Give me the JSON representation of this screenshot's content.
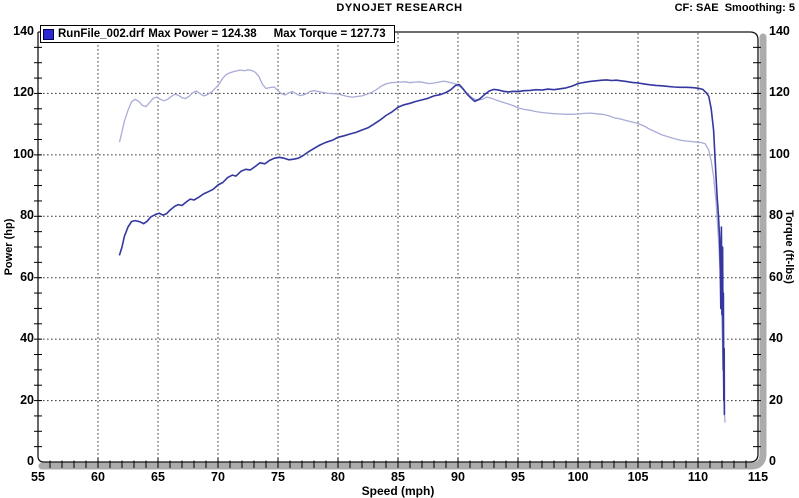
{
  "header": {
    "title": "DYNOJET RESEARCH",
    "settings": "CF: SAE  Smoothing: 5"
  },
  "legend": {
    "file": "RunFile_002.drf",
    "max_power": "Max Power = 124.38",
    "max_torque": "Max Torque = 127.73",
    "swatch_color": "#2a2ad0"
  },
  "axes": {
    "left_title": "Power (hp)",
    "right_title": "Torque (ft-lbs)",
    "x_title": "Speed (mph)"
  },
  "chart_data": {
    "type": "line",
    "title": "DYNOJET RESEARCH",
    "correction_factor": "SAE",
    "smoothing": 5,
    "run_file": "RunFile_002.drf",
    "max_power_hp": 124.38,
    "max_torque_ftlbs": 127.73,
    "xlabel": "Speed (mph)",
    "ylabel_left": "Power (hp)",
    "ylabel_right": "Torque (ft-lbs)",
    "xlim": [
      55,
      115
    ],
    "ylim": [
      0,
      140
    ],
    "x_major_ticks": [
      55,
      60,
      65,
      70,
      75,
      80,
      85,
      90,
      95,
      100,
      105,
      110,
      115
    ],
    "y_major_ticks": [
      0,
      20,
      40,
      60,
      80,
      100,
      120,
      140
    ],
    "x_minor_step": 1,
    "y_minor_step": 5,
    "grid": "dashed-major",
    "grid_color": "#3c3c3c",
    "frame_color": "#161616",
    "bar_color": "#acacac",
    "legend_position": "top-left",
    "series": [
      {
        "name": "Torque",
        "unit": "ft-lbs",
        "color": "#a9acd9",
        "points": [
          [
            61.8,
            104.3
          ],
          [
            62.0,
            107.5
          ],
          [
            62.2,
            111.0
          ],
          [
            62.5,
            114.5
          ],
          [
            62.8,
            117.3
          ],
          [
            63.1,
            118.1
          ],
          [
            63.4,
            117.4
          ],
          [
            63.7,
            116.1
          ],
          [
            64.0,
            115.7
          ],
          [
            64.3,
            117.0
          ],
          [
            64.6,
            118.4
          ],
          [
            64.9,
            118.8
          ],
          [
            65.2,
            118.1
          ],
          [
            65.5,
            117.6
          ],
          [
            65.8,
            118.1
          ],
          [
            66.1,
            119.0
          ],
          [
            66.4,
            119.7
          ],
          [
            66.7,
            119.4
          ],
          [
            67.0,
            118.6
          ],
          [
            67.3,
            118.3
          ],
          [
            67.6,
            119.1
          ],
          [
            67.9,
            120.2
          ],
          [
            68.2,
            120.8
          ],
          [
            68.5,
            119.9
          ],
          [
            68.8,
            119.2
          ],
          [
            69.1,
            119.6
          ],
          [
            69.5,
            120.6
          ],
          [
            69.8,
            121.8
          ],
          [
            70.1,
            123.1
          ],
          [
            70.4,
            125.0
          ],
          [
            70.7,
            126.2
          ],
          [
            71.0,
            126.7
          ],
          [
            71.3,
            127.1
          ],
          [
            71.6,
            127.4
          ],
          [
            71.9,
            127.6
          ],
          [
            72.2,
            127.4
          ],
          [
            72.5,
            127.7
          ],
          [
            72.8,
            127.5
          ],
          [
            73.1,
            126.9
          ],
          [
            73.4,
            125.6
          ],
          [
            73.7,
            123.0
          ],
          [
            74.0,
            121.6
          ],
          [
            74.3,
            121.9
          ],
          [
            74.7,
            122.1
          ],
          [
            75.0,
            120.9
          ],
          [
            75.3,
            119.9
          ],
          [
            75.6,
            119.5
          ],
          [
            75.9,
            120.2
          ],
          [
            76.2,
            120.6
          ],
          [
            76.5,
            119.9
          ],
          [
            76.8,
            119.3
          ],
          [
            77.1,
            119.5
          ],
          [
            77.4,
            120.0
          ],
          [
            77.7,
            120.7
          ],
          [
            78.0,
            120.9
          ],
          [
            78.4,
            120.6
          ],
          [
            78.8,
            120.3
          ],
          [
            79.2,
            120.0
          ],
          [
            79.6,
            119.9
          ],
          [
            80.0,
            119.8
          ],
          [
            80.4,
            119.4
          ],
          [
            80.8,
            119.0
          ],
          [
            81.2,
            118.8
          ],
          [
            81.6,
            119.0
          ],
          [
            82.0,
            119.2
          ],
          [
            82.4,
            119.7
          ],
          [
            82.8,
            120.3
          ],
          [
            83.2,
            121.2
          ],
          [
            83.6,
            122.4
          ],
          [
            84.0,
            123.1
          ],
          [
            84.4,
            123.5
          ],
          [
            84.8,
            123.6
          ],
          [
            85.2,
            123.7
          ],
          [
            85.6,
            123.8
          ],
          [
            86.0,
            123.5
          ],
          [
            86.4,
            123.7
          ],
          [
            86.8,
            123.8
          ],
          [
            87.2,
            123.5
          ],
          [
            87.6,
            123.2
          ],
          [
            88.0,
            123.4
          ],
          [
            88.4,
            123.7
          ],
          [
            88.8,
            124.0
          ],
          [
            89.2,
            123.7
          ],
          [
            89.6,
            123.3
          ],
          [
            90.0,
            122.8
          ],
          [
            90.4,
            121.4
          ],
          [
            90.8,
            119.8
          ],
          [
            91.2,
            118.5
          ],
          [
            91.6,
            117.8
          ],
          [
            92.0,
            118.1
          ],
          [
            92.4,
            118.8
          ],
          [
            92.8,
            118.4
          ],
          [
            93.2,
            117.8
          ],
          [
            93.6,
            117.3
          ],
          [
            94.0,
            116.8
          ],
          [
            94.5,
            116.2
          ],
          [
            95.0,
            115.3
          ],
          [
            95.5,
            114.8
          ],
          [
            96.0,
            114.5
          ],
          [
            96.5,
            114.1
          ],
          [
            97.0,
            113.8
          ],
          [
            97.5,
            113.6
          ],
          [
            98.0,
            113.4
          ],
          [
            98.5,
            113.3
          ],
          [
            99.0,
            113.2
          ],
          [
            99.5,
            113.2
          ],
          [
            100.0,
            113.3
          ],
          [
            100.5,
            113.5
          ],
          [
            101.0,
            113.6
          ],
          [
            101.5,
            113.4
          ],
          [
            102.0,
            113.2
          ],
          [
            102.5,
            112.8
          ],
          [
            103.0,
            112.1
          ],
          [
            103.5,
            111.7
          ],
          [
            104.0,
            111.2
          ],
          [
            104.5,
            110.7
          ],
          [
            105.0,
            110.2
          ],
          [
            105.5,
            109.4
          ],
          [
            106.0,
            108.3
          ],
          [
            106.5,
            107.4
          ],
          [
            107.0,
            106.5
          ],
          [
            107.5,
            105.9
          ],
          [
            108.0,
            105.3
          ],
          [
            108.5,
            104.8
          ],
          [
            109.0,
            104.5
          ],
          [
            109.5,
            104.3
          ],
          [
            110.0,
            104.1
          ],
          [
            110.3,
            104.0
          ],
          [
            110.6,
            103.6
          ],
          [
            110.9,
            101.5
          ],
          [
            111.1,
            98.0
          ],
          [
            111.3,
            93.0
          ],
          [
            111.5,
            85.0
          ],
          [
            111.7,
            73.0
          ],
          [
            111.9,
            58.0
          ],
          [
            112.0,
            45.0
          ],
          [
            112.1,
            30.0
          ],
          [
            112.15,
            21.0
          ],
          [
            112.2,
            16.0
          ],
          [
            112.25,
            13.0
          ]
        ]
      },
      {
        "name": "Power",
        "unit": "hp",
        "color": "#34379f",
        "points": [
          [
            61.8,
            67.5
          ],
          [
            62.0,
            70.0
          ],
          [
            62.2,
            73.5
          ],
          [
            62.5,
            76.5
          ],
          [
            62.8,
            78.3
          ],
          [
            63.1,
            78.6
          ],
          [
            63.5,
            78.2
          ],
          [
            63.8,
            77.6
          ],
          [
            64.1,
            78.4
          ],
          [
            64.4,
            79.8
          ],
          [
            64.8,
            80.6
          ],
          [
            65.1,
            81.0
          ],
          [
            65.4,
            80.4
          ],
          [
            65.7,
            80.8
          ],
          [
            66.0,
            82.0
          ],
          [
            66.4,
            83.3
          ],
          [
            66.7,
            83.8
          ],
          [
            67.0,
            83.5
          ],
          [
            67.4,
            84.8
          ],
          [
            67.7,
            85.6
          ],
          [
            68.0,
            85.3
          ],
          [
            68.4,
            86.2
          ],
          [
            68.8,
            87.3
          ],
          [
            69.2,
            88.0
          ],
          [
            69.6,
            88.8
          ],
          [
            70.0,
            90.2
          ],
          [
            70.4,
            91.0
          ],
          [
            70.8,
            92.6
          ],
          [
            71.2,
            93.4
          ],
          [
            71.5,
            93.1
          ],
          [
            71.9,
            94.6
          ],
          [
            72.3,
            95.3
          ],
          [
            72.7,
            95.1
          ],
          [
            73.1,
            96.2
          ],
          [
            73.5,
            97.4
          ],
          [
            73.9,
            97.1
          ],
          [
            74.3,
            98.2
          ],
          [
            74.7,
            98.9
          ],
          [
            75.1,
            99.2
          ],
          [
            75.5,
            98.9
          ],
          [
            75.9,
            98.4
          ],
          [
            76.3,
            98.6
          ],
          [
            76.7,
            98.9
          ],
          [
            77.1,
            99.8
          ],
          [
            77.5,
            100.9
          ],
          [
            78.0,
            102.1
          ],
          [
            78.5,
            103.2
          ],
          [
            79.0,
            104.1
          ],
          [
            79.5,
            104.7
          ],
          [
            80.0,
            105.7
          ],
          [
            80.5,
            106.2
          ],
          [
            81.0,
            106.8
          ],
          [
            81.5,
            107.3
          ],
          [
            82.0,
            108.1
          ],
          [
            82.5,
            108.8
          ],
          [
            83.0,
            110.0
          ],
          [
            83.5,
            111.3
          ],
          [
            84.0,
            112.8
          ],
          [
            84.5,
            114.0
          ],
          [
            85.0,
            115.5
          ],
          [
            85.5,
            116.3
          ],
          [
            86.0,
            116.8
          ],
          [
            86.5,
            117.4
          ],
          [
            87.0,
            117.9
          ],
          [
            87.5,
            118.4
          ],
          [
            88.0,
            119.2
          ],
          [
            88.5,
            119.6
          ],
          [
            89.0,
            120.3
          ],
          [
            89.4,
            121.2
          ],
          [
            89.8,
            122.6
          ],
          [
            90.1,
            122.9
          ],
          [
            90.4,
            121.6
          ],
          [
            90.8,
            119.6
          ],
          [
            91.1,
            118.4
          ],
          [
            91.4,
            117.4
          ],
          [
            91.8,
            118.2
          ],
          [
            92.2,
            119.6
          ],
          [
            92.6,
            120.8
          ],
          [
            93.0,
            121.3
          ],
          [
            93.4,
            121.1
          ],
          [
            93.8,
            120.7
          ],
          [
            94.2,
            120.5
          ],
          [
            94.6,
            120.7
          ],
          [
            95.0,
            120.6
          ],
          [
            95.5,
            120.9
          ],
          [
            96.0,
            121.0
          ],
          [
            96.5,
            121.2
          ],
          [
            97.0,
            121.1
          ],
          [
            97.5,
            121.4
          ],
          [
            98.0,
            121.2
          ],
          [
            98.5,
            121.5
          ],
          [
            99.0,
            121.8
          ],
          [
            99.5,
            122.4
          ],
          [
            100.0,
            123.2
          ],
          [
            100.5,
            123.6
          ],
          [
            101.0,
            123.9
          ],
          [
            101.5,
            124.1
          ],
          [
            102.0,
            124.3
          ],
          [
            102.4,
            124.4
          ],
          [
            102.8,
            124.2
          ],
          [
            103.2,
            124.3
          ],
          [
            103.6,
            124.1
          ],
          [
            104.0,
            123.9
          ],
          [
            104.5,
            123.6
          ],
          [
            105.0,
            123.4
          ],
          [
            105.5,
            123.1
          ],
          [
            106.0,
            122.8
          ],
          [
            106.5,
            122.6
          ],
          [
            107.0,
            122.5
          ],
          [
            107.5,
            122.3
          ],
          [
            108.0,
            122.1
          ],
          [
            108.5,
            122.0
          ],
          [
            109.0,
            122.0
          ],
          [
            109.5,
            121.9
          ],
          [
            110.0,
            121.7
          ],
          [
            110.4,
            121.3
          ],
          [
            110.7,
            120.2
          ],
          [
            110.9,
            119.0
          ],
          [
            111.1,
            115.0
          ],
          [
            111.3,
            108.0
          ],
          [
            111.4,
            100.5
          ],
          [
            111.5,
            93.0
          ],
          [
            111.6,
            86.0
          ],
          [
            111.7,
            80.5
          ],
          [
            111.8,
            73.0
          ],
          [
            111.85,
            64.0
          ],
          [
            111.9,
            50.0
          ],
          [
            111.95,
            76.5
          ],
          [
            112.0,
            48.0
          ],
          [
            112.05,
            70.0
          ],
          [
            112.1,
            30.0
          ],
          [
            112.12,
            55.0
          ],
          [
            112.15,
            20.0
          ],
          [
            112.18,
            37.0
          ],
          [
            112.2,
            15.5
          ]
        ]
      }
    ]
  }
}
